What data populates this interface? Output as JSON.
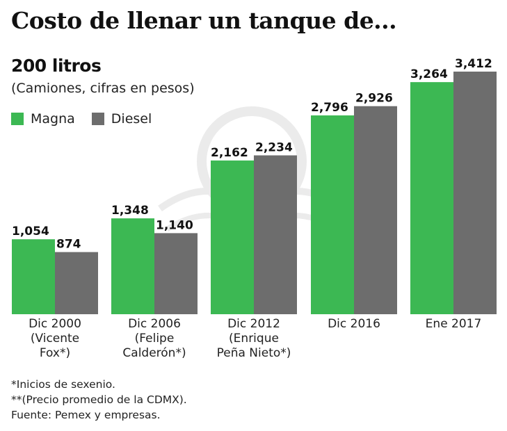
{
  "header": {
    "title": "Costo de llenar un tanque  de...",
    "subtitle": "200 litros",
    "units": "(Camiones, cifras en pesos)"
  },
  "legend": [
    {
      "name": "Magna",
      "color": "#3cb853"
    },
    {
      "name": "Diesel",
      "color": "#6d6d6d"
    }
  ],
  "chart_data": {
    "type": "bar",
    "title": "Costo de llenar un tanque de... 200 litros",
    "subtitle": "(Camiones, cifras en pesos)",
    "xlabel": "",
    "ylabel": "",
    "ylim": [
      0,
      3412
    ],
    "grid": false,
    "legend_position": "top-left",
    "categories": [
      "Dic 2000\n(Vicente\nFox*)",
      "Dic 2006\n(Felipe\nCalderón*)",
      "Dic 2012\n(Enrique\nPeña Nieto*)",
      "Dic 2016",
      "Ene 2017"
    ],
    "series": [
      {
        "name": "Magna",
        "color": "#3cb853",
        "values": [
          1054,
          1348,
          2162,
          2796,
          3264
        ],
        "labels": [
          "1,054",
          "1,348",
          "2,162",
          "2,796",
          "3,264"
        ]
      },
      {
        "name": "Diesel",
        "color": "#6d6d6d",
        "values": [
          874,
          1140,
          2234,
          2926,
          3412
        ],
        "labels": [
          "874",
          "1,140",
          "2,234",
          "2,926",
          "3,412"
        ]
      }
    ]
  },
  "notes": [
    "*Inicios de sexenio.",
    "**(Precio promedio de la CDMX).",
    "Fuente: Pemex y empresas."
  ]
}
